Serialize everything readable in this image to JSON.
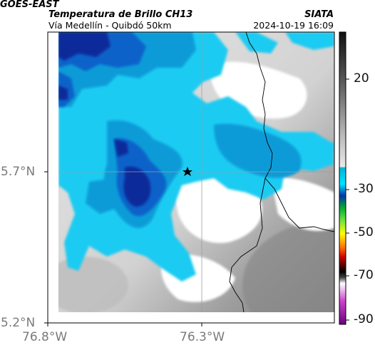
{
  "header": {
    "satellite": "GOES-EAST",
    "product": "Temperatura de Brillo CH13",
    "organization": "SIATA",
    "subtitle": "Vía Medellín - Quibdó 50km",
    "datetime": "2024-10-19 16:09"
  },
  "axes": {
    "x_tick_labels": [
      "76.8°W",
      "76.3°W"
    ],
    "y_tick_labels": [
      "5.7°N",
      "5.2°N"
    ]
  },
  "colorbar": {
    "tick_labels": [
      "20",
      "-30",
      "-50",
      "-70",
      "-90"
    ],
    "stops": [
      {
        "value": 30,
        "color": "#111111"
      },
      {
        "value": 0,
        "color": "#bdbdbd"
      },
      {
        "value": -19,
        "color": "#e8e8e8"
      },
      {
        "value": -20,
        "color": "#00b4d8"
      },
      {
        "value": -28,
        "color": "#00e5ff"
      },
      {
        "value": -33,
        "color": "#0033aa"
      },
      {
        "value": -40,
        "color": "#00cc44"
      },
      {
        "value": -47,
        "color": "#ffff00"
      },
      {
        "value": -56,
        "color": "#ff6600"
      },
      {
        "value": -60,
        "color": "#cc0000"
      },
      {
        "value": -68,
        "color": "#000000"
      },
      {
        "value": -75,
        "color": "#ffffff"
      },
      {
        "value": -84,
        "color": "#cc44cc"
      },
      {
        "value": -92,
        "color": "#6a0080"
      }
    ]
  },
  "map": {
    "marker_icon": "star-icon",
    "colors": {
      "deep_cloud": "#072a9a",
      "mid_cloud": "#0a62c9",
      "cloud": "#0b9bd8",
      "light_cloud": "#1ecbf2",
      "clear": "#ffffff",
      "grey_low": "#b4b4b4",
      "grey_high": "#8a8a8a",
      "gridline": "#9e9e9e",
      "border": "#000000"
    }
  }
}
